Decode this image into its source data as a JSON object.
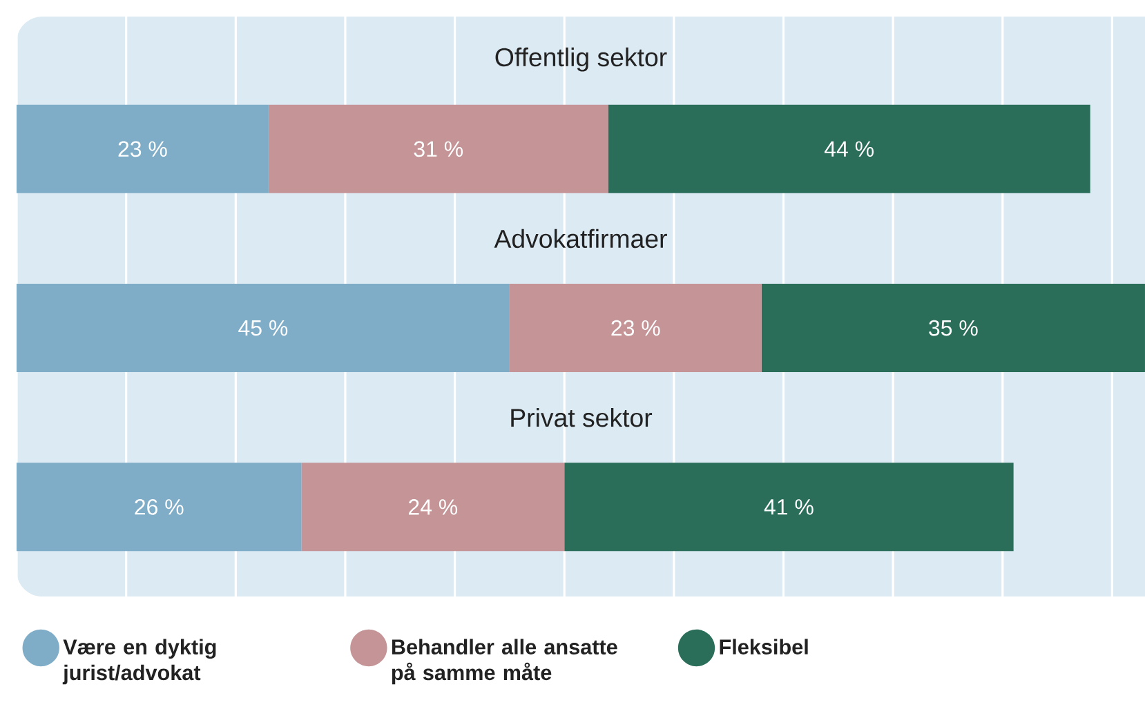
{
  "chart_data": {
    "type": "bar",
    "orientation": "horizontal",
    "stacked": true,
    "categories": [
      "Offentlig sektor",
      "Advokatfirmaer",
      "Privat sektor"
    ],
    "series": [
      {
        "name": "Være en dyktig jurist/advokat",
        "color": "#7fadc8",
        "values": [
          23,
          45,
          26
        ],
        "value_labels": [
          "23 %",
          "45 %",
          "26 %"
        ]
      },
      {
        "name": "Behandler alle ansatte på samme måte",
        "color": "#c49497",
        "values": [
          31,
          23,
          24
        ],
        "value_labels": [
          "31 %",
          "23 %",
          "24 %"
        ]
      },
      {
        "name": "Fleksibel",
        "color": "#2a6e5a",
        "values": [
          44,
          35,
          41
        ],
        "value_labels": [
          "44 %",
          "35 %",
          "41 %"
        ]
      }
    ],
    "grid": "x",
    "legend": "bottom"
  }
}
